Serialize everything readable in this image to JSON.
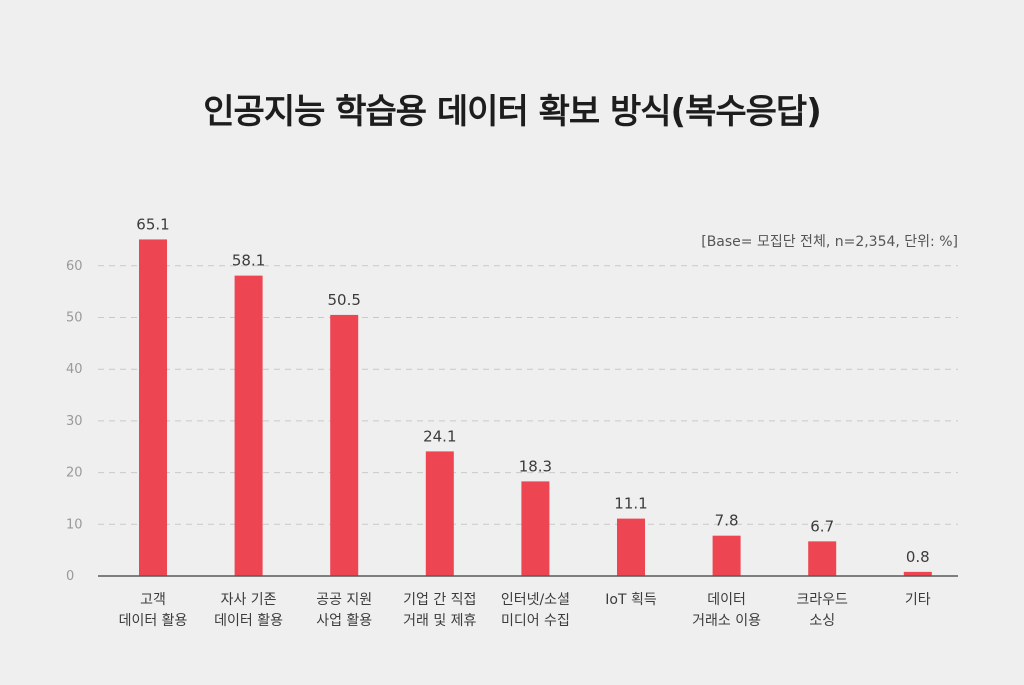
{
  "chart_data": {
    "type": "bar",
    "title": "인공지능 학습용 데이터 확보 방식(복수응답)",
    "note": "[Base= 모집단 전체, n=2,354, 단위: %]",
    "categories": [
      [
        "고객",
        "데이터 활용"
      ],
      [
        "자사 기존",
        "데이터 활용"
      ],
      [
        "공공 지원",
        "사업 활용"
      ],
      [
        "기업 간 직접",
        "거래 및 제휴"
      ],
      [
        "인터넷/소셜",
        "미디어 수집"
      ],
      [
        "IoT 획득"
      ],
      [
        "데이터",
        "거래소 이용"
      ],
      [
        "크라우드",
        "소싱"
      ],
      [
        "기타"
      ]
    ],
    "values": [
      65.1,
      58.1,
      50.5,
      24.1,
      18.3,
      11.1,
      7.8,
      6.7,
      0.8
    ],
    "value_labels": [
      "65.1",
      "58.1",
      "50.5",
      "24.1",
      "18.3",
      "11.1",
      "7.8",
      "6.7",
      "0.8"
    ],
    "yticks": [
      0,
      10,
      20,
      30,
      40,
      50,
      60
    ],
    "ytick_labels": [
      "0",
      "10",
      "20",
      "30",
      "40",
      "50",
      "60"
    ],
    "ylim": [
      0,
      70
    ],
    "grid": true,
    "bar_color": "#ee4553",
    "xlabel": "",
    "ylabel": ""
  }
}
